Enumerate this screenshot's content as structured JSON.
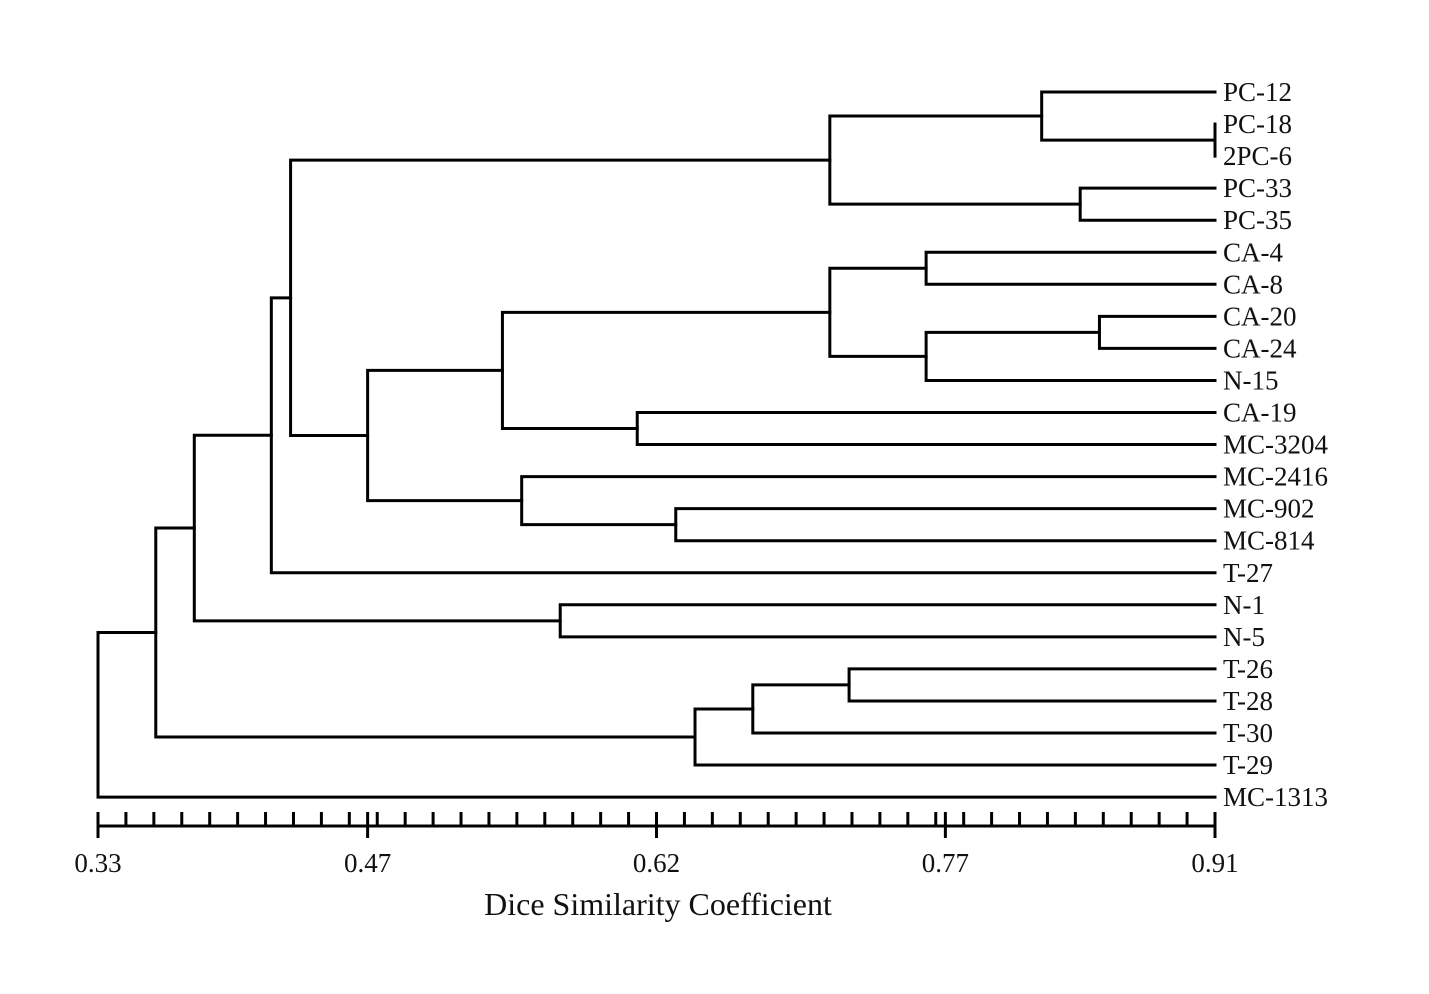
{
  "chart_data": {
    "type": "dendrogram",
    "title": "",
    "xlabel": "Dice Similarity Coefficient",
    "xlim": [
      0.33,
      0.91
    ],
    "ticks": [
      0.33,
      0.47,
      0.62,
      0.77,
      0.91
    ],
    "minor_tick_step": 0.0145,
    "leaves": [
      "PC-12",
      "PC-18",
      "2PC-6",
      "PC-33",
      "PC-35",
      "CA-4",
      "CA-8",
      "CA-20",
      "CA-24",
      "N-15",
      "CA-19",
      "MC-3204",
      "MC-2416",
      "MC-902",
      "MC-814",
      "T-27",
      "N-1",
      "N-5",
      "T-26",
      "T-28",
      "T-30",
      "T-29",
      "MC-1313"
    ],
    "merges": [
      {
        "children": [
          "PC-18",
          "2PC-6"
        ],
        "similarity": 0.91
      },
      {
        "children": [
          "PC-12",
          0
        ],
        "similarity": 0.82
      },
      {
        "children": [
          "PC-33",
          "PC-35"
        ],
        "similarity": 0.84
      },
      {
        "children": [
          1,
          2
        ],
        "similarity": 0.71
      },
      {
        "children": [
          "CA-4",
          "CA-8"
        ],
        "similarity": 0.76
      },
      {
        "children": [
          "CA-20",
          "CA-24"
        ],
        "similarity": 0.85
      },
      {
        "children": [
          5,
          "N-15"
        ],
        "similarity": 0.76
      },
      {
        "children": [
          4,
          6
        ],
        "similarity": 0.71
      },
      {
        "children": [
          "CA-19",
          "MC-3204"
        ],
        "similarity": 0.61
      },
      {
        "children": [
          7,
          8
        ],
        "similarity": 0.54
      },
      {
        "children": [
          "MC-902",
          "MC-814"
        ],
        "similarity": 0.63
      },
      {
        "children": [
          "MC-2416",
          10
        ],
        "similarity": 0.55
      },
      {
        "children": [
          9,
          11
        ],
        "similarity": 0.47
      },
      {
        "children": [
          3,
          12
        ],
        "similarity": 0.43
      },
      {
        "children": [
          13,
          "T-27"
        ],
        "similarity": 0.42
      },
      {
        "children": [
          "N-1",
          "N-5"
        ],
        "similarity": 0.57
      },
      {
        "children": [
          14,
          15
        ],
        "similarity": 0.38
      },
      {
        "children": [
          "T-26",
          "T-28"
        ],
        "similarity": 0.72
      },
      {
        "children": [
          17,
          "T-30"
        ],
        "similarity": 0.67
      },
      {
        "children": [
          18,
          "T-29"
        ],
        "similarity": 0.64
      },
      {
        "children": [
          16,
          19
        ],
        "similarity": 0.36
      },
      {
        "children": [
          20,
          "MC-1313"
        ],
        "similarity": 0.33
      }
    ]
  }
}
